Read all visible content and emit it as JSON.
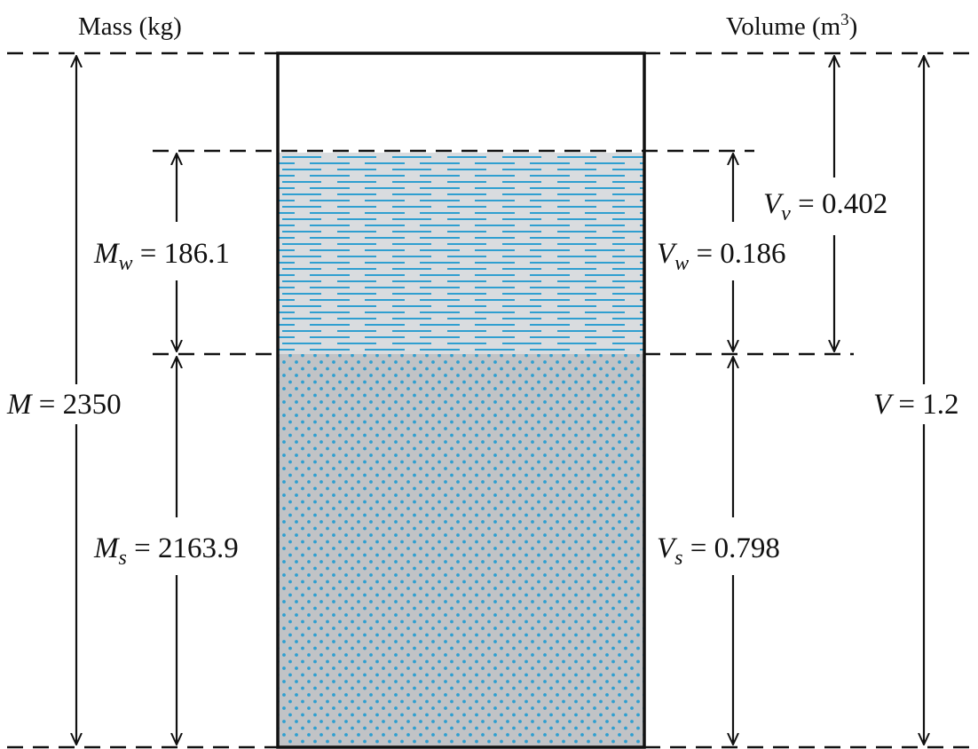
{
  "headers": {
    "mass": "Mass (kg)",
    "volume_prefix": "Volume (m",
    "volume_exp": "3",
    "volume_suffix": ")"
  },
  "labels": {
    "M": {
      "sym": "M",
      "sub": "",
      "eq": " = 2350"
    },
    "Mw": {
      "sym": "M",
      "sub": "w",
      "eq": " = 186.1"
    },
    "Ms": {
      "sym": "M",
      "sub": "s",
      "eq": " = 2163.9"
    },
    "Vw": {
      "sym": "V",
      "sub": "w",
      "eq": " = 0.186"
    },
    "Vv": {
      "sym": "V",
      "sub": "v",
      "eq": " = 0.402"
    },
    "Vs": {
      "sym": "V",
      "sub": "s",
      "eq": " = 0.798"
    },
    "V": {
      "sym": "V",
      "sub": "",
      "eq": " = 1.2"
    }
  },
  "colors": {
    "water_fill": "#d9dcdf",
    "water_lines": "#2f9fd0",
    "solid_fill": "#c1c3c6",
    "solid_dots": "#2f9fd0",
    "line": "#111111"
  }
}
